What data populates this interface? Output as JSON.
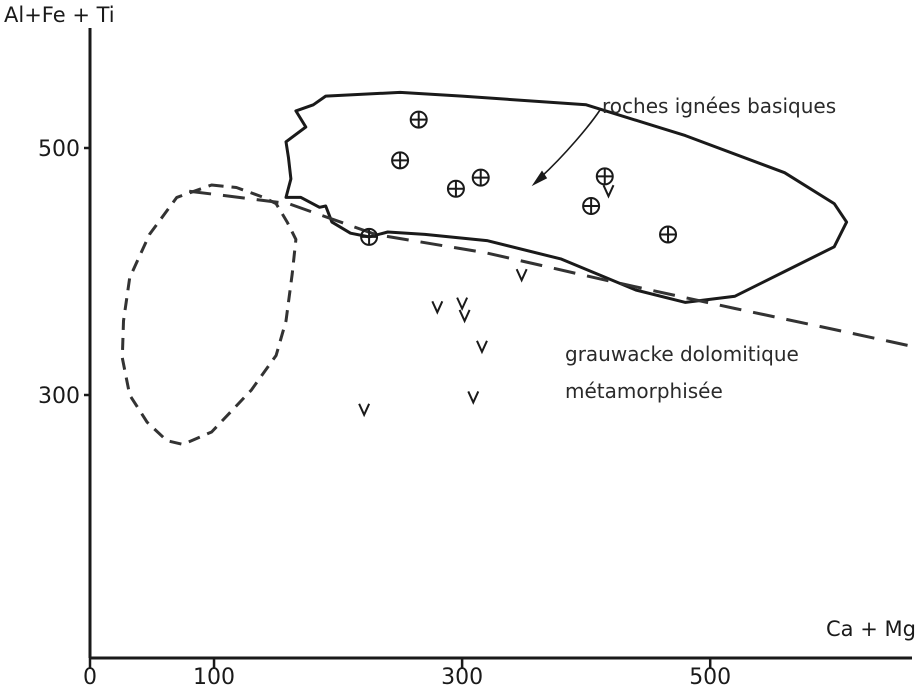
{
  "chart_data": {
    "type": "scatter",
    "xlabel": "Ca + Mg",
    "ylabel": "Al+Fe + Ti",
    "xlim": [
      0,
      660
    ],
    "ylim": [
      100,
      520
    ],
    "x_ticks": [
      0,
      100,
      300,
      500
    ],
    "x_tick_labels": [
      "0",
      "100",
      "300",
      "500"
    ],
    "y_ticks": [
      300,
      500
    ],
    "y_tick_labels": [
      "300",
      "500"
    ],
    "series": [
      {
        "marker": "circle-plus",
        "points": [
          {
            "x": 265,
            "y": 523
          },
          {
            "x": 250,
            "y": 490
          },
          {
            "x": 295,
            "y": 467
          },
          {
            "x": 315,
            "y": 476
          },
          {
            "x": 415,
            "y": 477
          },
          {
            "x": 404,
            "y": 453
          },
          {
            "x": 225,
            "y": 428
          },
          {
            "x": 466,
            "y": 430
          }
        ]
      },
      {
        "marker": "v",
        "points": [
          {
            "x": 280,
            "y": 371
          },
          {
            "x": 300,
            "y": 374
          },
          {
            "x": 302,
            "y": 364
          },
          {
            "x": 316,
            "y": 339
          },
          {
            "x": 309,
            "y": 298
          },
          {
            "x": 221,
            "y": 288
          },
          {
            "x": 348,
            "y": 397
          },
          {
            "x": 418,
            "y": 465
          }
        ]
      }
    ],
    "regions": [
      {
        "style": "solid",
        "label": "roches ignées basiques",
        "points": [
          [
            180,
            535
          ],
          [
            190,
            542
          ],
          [
            250,
            545
          ],
          [
            300,
            542
          ],
          [
            400,
            535
          ],
          [
            480,
            510
          ],
          [
            560,
            480
          ],
          [
            600,
            455
          ],
          [
            610,
            440
          ],
          [
            600,
            420
          ],
          [
            560,
            400
          ],
          [
            520,
            380
          ],
          [
            480,
            375
          ],
          [
            440,
            385
          ],
          [
            380,
            410
          ],
          [
            320,
            425
          ],
          [
            270,
            430
          ],
          [
            240,
            432
          ],
          [
            225,
            428
          ],
          [
            210,
            431
          ],
          [
            195,
            440
          ],
          [
            190,
            453
          ],
          [
            185,
            452
          ],
          [
            170,
            460
          ],
          [
            158,
            460
          ],
          [
            162,
            475
          ],
          [
            160,
            492
          ],
          [
            158,
            505
          ],
          [
            174,
            517
          ],
          [
            166,
            530
          ],
          [
            180,
            535
          ]
        ]
      },
      {
        "style": "dashed",
        "label": "",
        "points": [
          [
            98,
            470
          ],
          [
            118,
            468
          ],
          [
            140,
            460
          ],
          [
            150,
            455
          ],
          [
            159,
            440
          ],
          [
            166,
            426
          ],
          [
            163,
            398
          ],
          [
            158,
            360
          ],
          [
            150,
            332
          ],
          [
            130,
            304
          ],
          [
            98,
            270
          ],
          [
            75,
            260
          ],
          [
            62,
            263
          ],
          [
            46,
            278
          ],
          [
            32,
            300
          ],
          [
            26,
            330
          ],
          [
            27,
            360
          ],
          [
            32,
            395
          ],
          [
            48,
            430
          ],
          [
            70,
            460
          ],
          [
            98,
            470
          ]
        ]
      }
    ],
    "trend_line": {
      "style": "dashed",
      "points": [
        [
          80,
          465
        ],
        [
          160,
          455
        ],
        [
          230,
          430
        ],
        [
          320,
          415
        ],
        [
          420,
          392
        ],
        [
          520,
          370
        ],
        [
          600,
          353
        ],
        [
          660,
          340
        ]
      ]
    },
    "annotations": [
      {
        "text": "roches ignées basiques",
        "x": 410,
        "y": 540
      },
      {
        "text": "grauwacke dolomitique",
        "x": 378,
        "y": 331
      },
      {
        "text": "métamorphisée",
        "x": 378,
        "y": 300
      }
    ]
  }
}
